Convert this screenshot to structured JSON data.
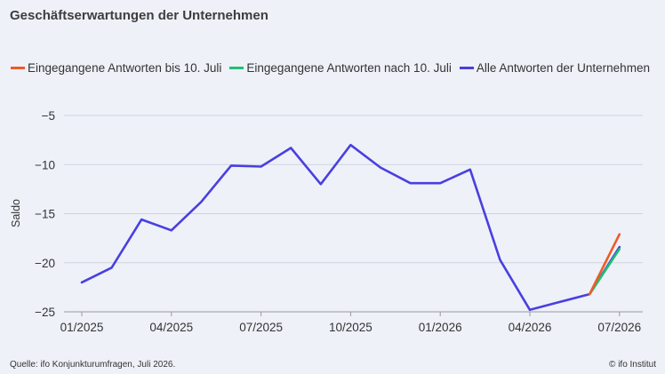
{
  "header": {
    "title": "Geschäftserwartungen der Unternehmen"
  },
  "chart_data": {
    "type": "line",
    "title": "Geschäftserwartungen der Unternehmen",
    "xlabel": "",
    "ylabel": "Saldo",
    "ylim": [
      -25,
      -5
    ],
    "yticks": [
      -5,
      -10,
      -15,
      -20,
      -25
    ],
    "ytick_labels": [
      "−5",
      "−10",
      "−15",
      "−20",
      "−25"
    ],
    "xtick_labels": [
      "01/2025",
      "04/2025",
      "07/2025",
      "10/2025",
      "01/2026",
      "04/2026",
      "07/2026"
    ],
    "x": [
      "01/2025",
      "02/2025",
      "03/2025",
      "04/2025",
      "05/2025",
      "06/2025",
      "07/2025",
      "08/2025",
      "09/2025",
      "10/2025",
      "11/2025",
      "12/2025",
      "01/2026",
      "02/2026",
      "03/2026",
      "04/2026",
      "05/2026",
      "06/2026",
      "07/2026"
    ],
    "grid": "horizontal",
    "legend_position": "top",
    "series": [
      {
        "name": "Eingegangene Antworten bis 10. Juli",
        "color": "#f05a28",
        "x": [
          "06/2026",
          "07/2026"
        ],
        "values": [
          -23.2,
          -17.1
        ]
      },
      {
        "name": "Eingegangene Antworten nach 10. Juli",
        "color": "#1fbf70",
        "x": [
          "06/2026",
          "07/2026"
        ],
        "values": [
          -23.2,
          -18.6
        ]
      },
      {
        "name": "Alle Antworten der Unternehmen",
        "color": "#4a3fe0",
        "x": [
          "01/2025",
          "02/2025",
          "03/2025",
          "04/2025",
          "05/2025",
          "06/2025",
          "07/2025",
          "08/2025",
          "09/2025",
          "10/2025",
          "11/2025",
          "12/2025",
          "01/2026",
          "02/2026",
          "03/2026",
          "04/2026",
          "05/2026",
          "06/2026",
          "07/2026"
        ],
        "values": [
          -22.0,
          -20.5,
          -15.6,
          -16.7,
          -13.8,
          -10.1,
          -10.2,
          -8.3,
          -12.0,
          -8.0,
          -10.3,
          -11.9,
          -11.9,
          -10.5,
          -19.7,
          -24.8,
          -24.0,
          -23.2,
          -18.4
        ]
      }
    ]
  },
  "footer": {
    "source": "Quelle: ifo Konjunkturumfragen,  Juli 2026.",
    "copyright": "© ifo Institut"
  }
}
